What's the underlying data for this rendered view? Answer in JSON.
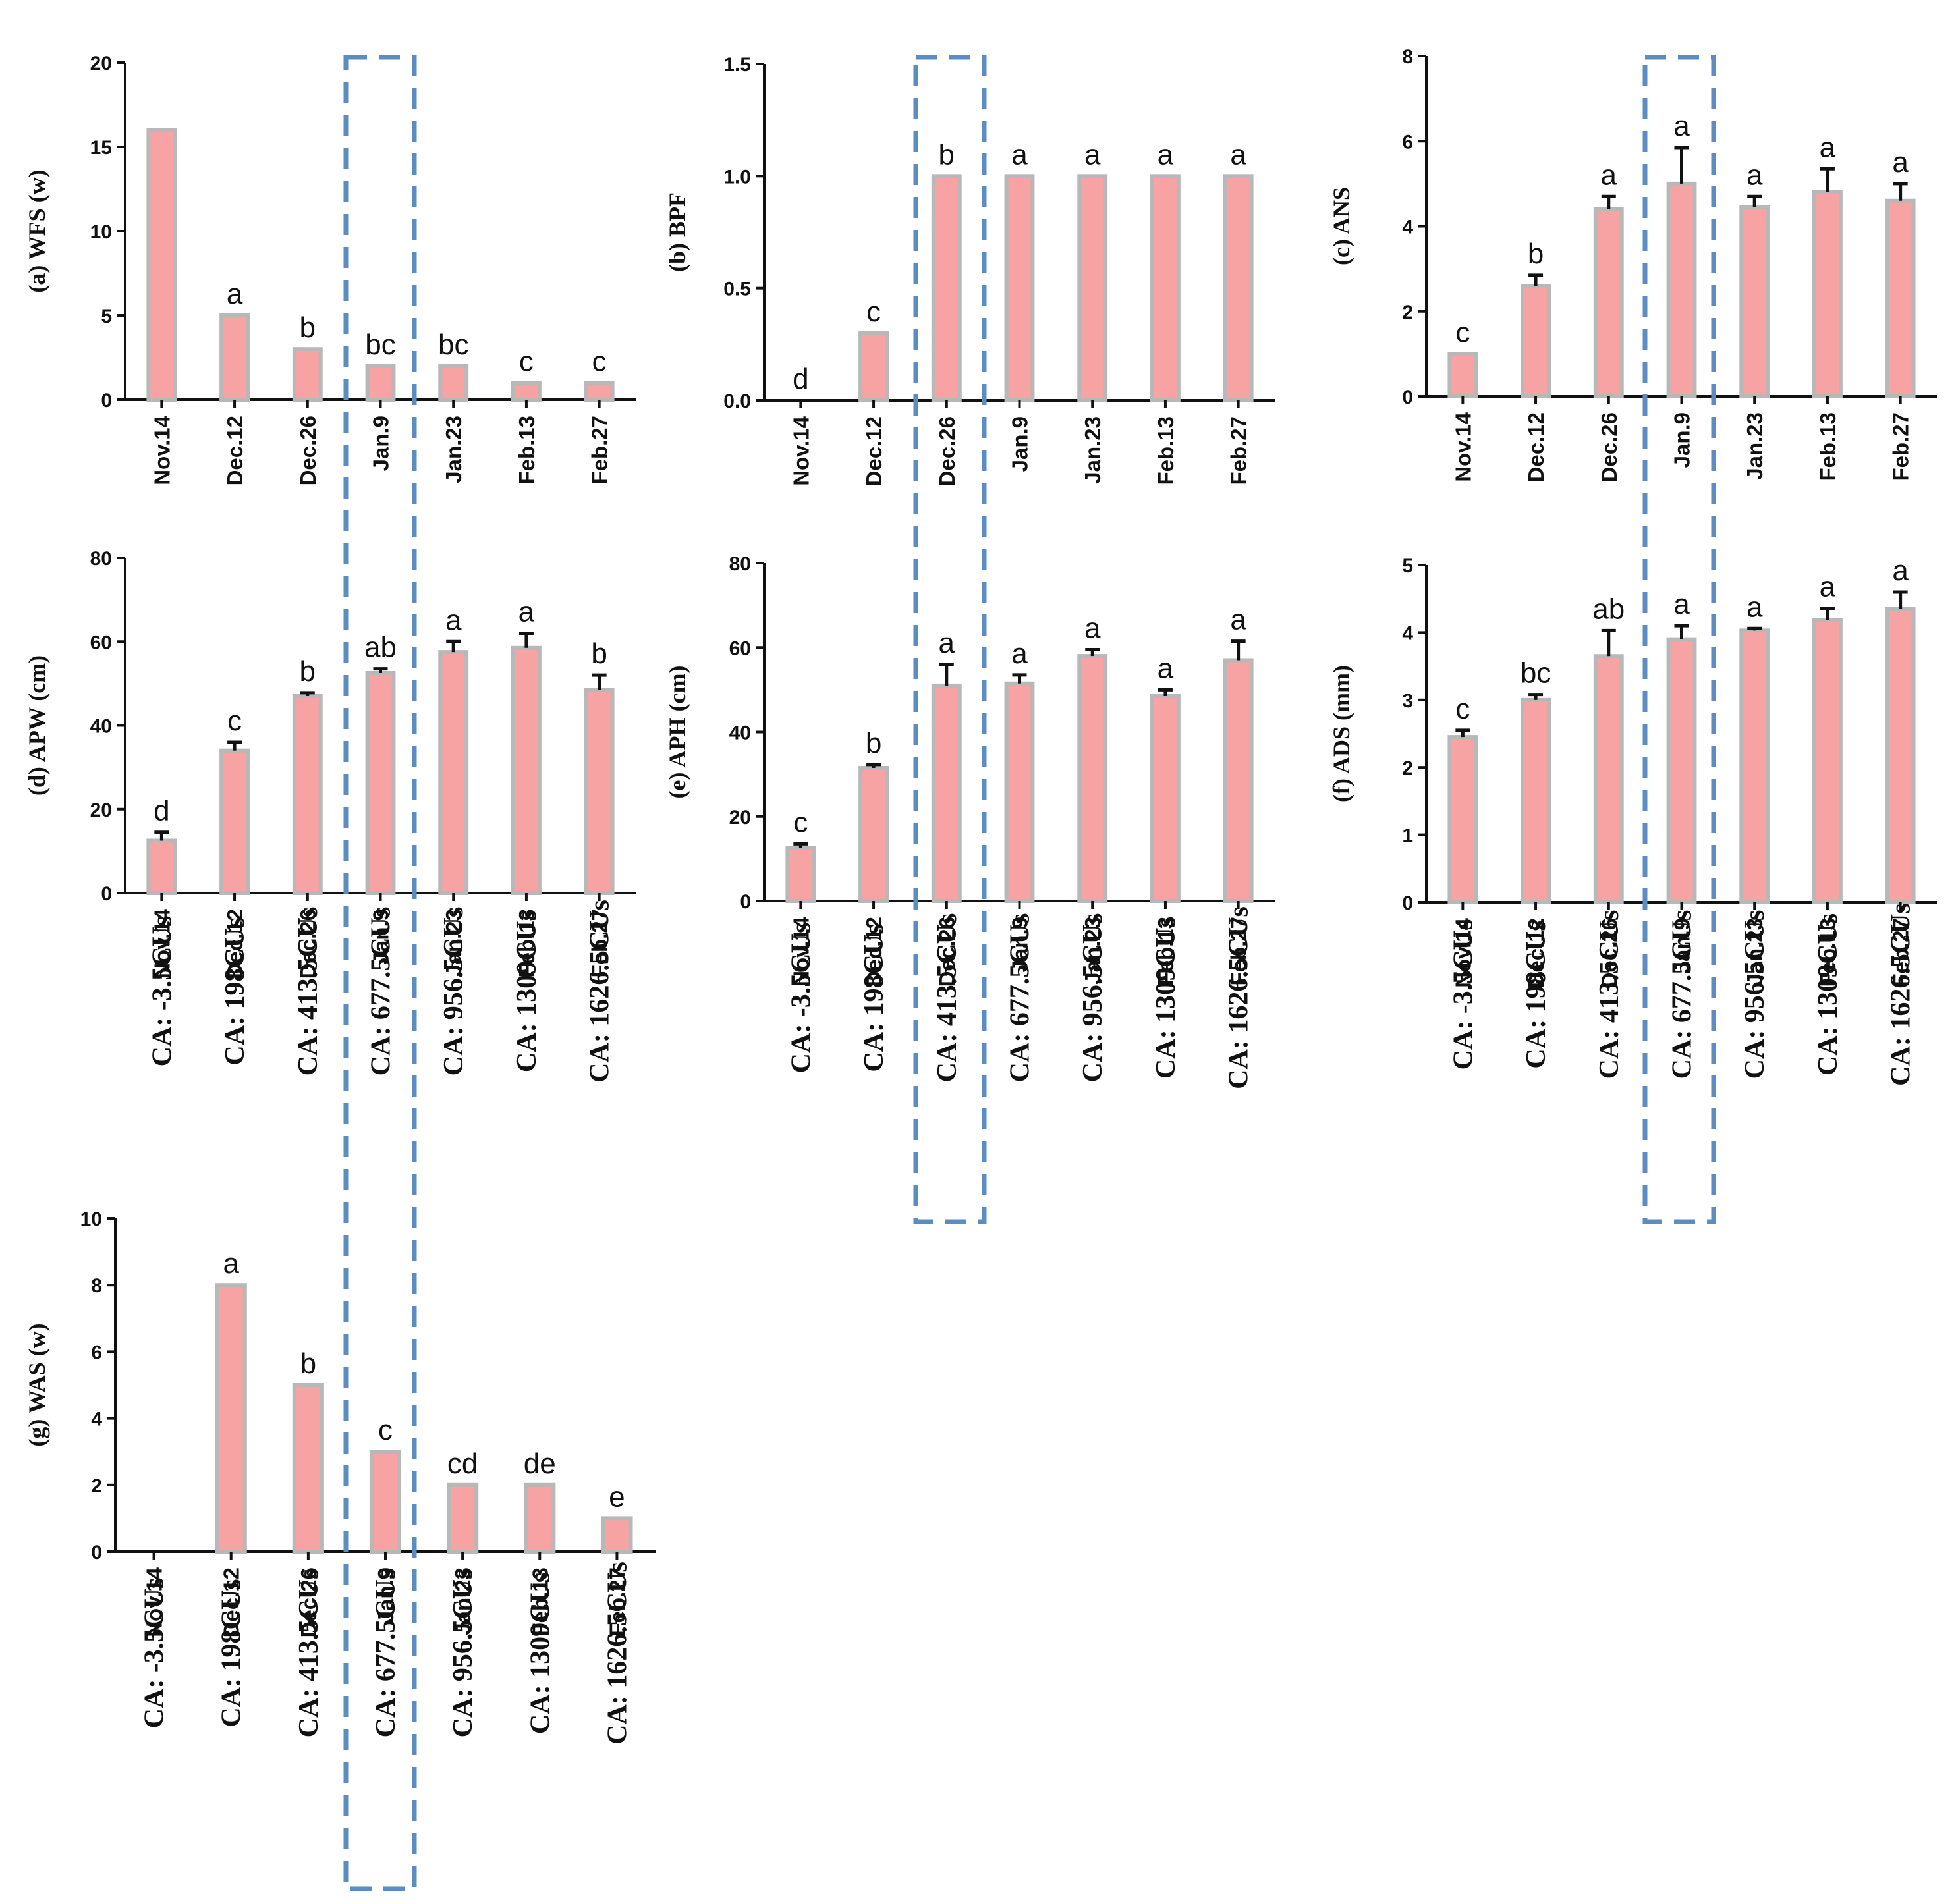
{
  "colors": {
    "bar_fill": "#F8A3A3",
    "bar_edge": "#B8B8B8",
    "axis": "#111111",
    "highlight": "#5B8CC2"
  },
  "chart_data": [
    {
      "id": "a",
      "type": "bar",
      "ylabel": "(a) WFS (w)",
      "ylim": [
        0,
        20
      ],
      "yticks": [
        "0",
        "5",
        "10",
        "15",
        "20"
      ],
      "categories": [
        "Nov.14",
        "Dec.12",
        "Dec.26",
        "Jan.9",
        "Jan.23",
        "Feb.13",
        "Feb.27"
      ],
      "values": [
        16,
        5,
        3,
        2,
        2,
        1,
        1
      ],
      "errors": [
        0,
        0,
        0,
        0,
        0,
        0,
        0
      ],
      "labels": [
        "",
        "a",
        "b",
        "bc",
        "bc",
        "c",
        "c"
      ]
    },
    {
      "id": "b",
      "type": "bar",
      "ylabel": "(b) BPF",
      "ylim": [
        0,
        1.5
      ],
      "yticks": [
        "0.0",
        "0.5",
        "1.0",
        "1.5"
      ],
      "categories": [
        "Nov.14",
        "Dec.12",
        "Dec.26",
        "Jan.9",
        "Jan.23",
        "Feb.13",
        "Feb.27"
      ],
      "values": [
        0,
        0.3,
        1,
        1,
        1,
        1,
        1
      ],
      "errors": [
        0,
        0,
        0,
        0,
        0,
        0,
        0
      ],
      "labels": [
        "d",
        "c",
        "b",
        "a",
        "a",
        "a",
        "a"
      ]
    },
    {
      "id": "c",
      "type": "bar",
      "ylabel": "(c) ANS",
      "ylim": [
        0,
        8
      ],
      "yticks": [
        "0",
        "2",
        "4",
        "6",
        "8"
      ],
      "categories": [
        "Nov.14",
        "Dec.12",
        "Dec.26",
        "Jan.9",
        "Jan.23",
        "Feb.13",
        "Feb.27"
      ],
      "values": [
        1,
        2.6,
        4.4,
        5,
        4.45,
        4.8,
        4.6
      ],
      "errors": [
        0,
        0.25,
        0.3,
        0.85,
        0.25,
        0.55,
        0.4
      ],
      "labels": [
        "c",
        "b",
        "a",
        "a",
        "a",
        "a",
        "a"
      ]
    },
    {
      "id": "d",
      "type": "bar",
      "ylabel": "(d) APW (cm)",
      "ylim": [
        0,
        80
      ],
      "yticks": [
        "0",
        "20",
        "40",
        "60",
        "80"
      ],
      "categories": [
        "Nov.14",
        "Dec.12",
        "Dec.26",
        "Jan.9",
        "Jan.23",
        "Feb.13",
        "Feb.27"
      ],
      "ca_labels": [
        "CA: -3.5CUs",
        "CA: 198CUs",
        "CA: 413.5CUs",
        "CA: 677.5CUs",
        "CA: 956.5CUs",
        "CA: 1309CUs",
        "CA: 1626.5CUs"
      ],
      "values": [
        12.5,
        34,
        47,
        52.5,
        57.5,
        58.5,
        48.5
      ],
      "errors": [
        2,
        2,
        0.8,
        1,
        2.5,
        3.5,
        3.5
      ],
      "labels": [
        "d",
        "c",
        "b",
        "ab",
        "a",
        "a",
        "b"
      ]
    },
    {
      "id": "e",
      "type": "bar",
      "ylabel": "(e) APH (cm)",
      "ylim": [
        0,
        80
      ],
      "yticks": [
        "0",
        "20",
        "40",
        "60",
        "80"
      ],
      "categories": [
        "Nov.14",
        "Dec.12",
        "Dec.26",
        "Jan.9",
        "Jan.23",
        "Feb.13",
        "Feb.27"
      ],
      "ca_labels": [
        "CA: -3.5CUs",
        "CA: 198CUs",
        "CA: 413.5CUs",
        "CA: 677.5CUs",
        "CA: 956.5CUs",
        "CA: 1309CUs",
        "CA: 1626.5CUs"
      ],
      "values": [
        12.5,
        31.5,
        51,
        51.5,
        58,
        48.5,
        57
      ],
      "errors": [
        1,
        0.8,
        5,
        2,
        1.5,
        1.5,
        4.5
      ],
      "labels": [
        "c",
        "b",
        "a",
        "a",
        "a",
        "a",
        "a"
      ]
    },
    {
      "id": "f",
      "type": "bar",
      "ylabel": "(f) ADS (mm)",
      "ylim": [
        0,
        5
      ],
      "yticks": [
        "0",
        "1",
        "2",
        "3",
        "4",
        "5"
      ],
      "categories": [
        "Nov.14",
        "Dec.12",
        "Dec.26",
        "Jan.9",
        "Jan.23",
        "Feb.13",
        "Feb.27"
      ],
      "ca_labels": [
        "CA: -3.5CUs",
        "CA: 198CUs",
        "CA: 413.5CUs",
        "CA: 677.5CUs",
        "CA: 956.5CUs",
        "CA: 1309CUs",
        "CA: 1626.5CUs"
      ],
      "values": [
        2.45,
        3,
        3.65,
        3.9,
        4.03,
        4.18,
        4.35
      ],
      "errors": [
        0.1,
        0.08,
        0.38,
        0.2,
        0.03,
        0.18,
        0.25
      ],
      "labels": [
        "c",
        "bc",
        "ab",
        "a",
        "a",
        "a",
        "a"
      ]
    },
    {
      "id": "g",
      "type": "bar",
      "ylabel": "(g) WAS (w)",
      "ylim": [
        0,
        10
      ],
      "yticks": [
        "0",
        "2",
        "4",
        "6",
        "8",
        "10"
      ],
      "categories": [
        "Nov.14",
        "Dec.12",
        "Dec.26",
        "Jan.9",
        "Jan.23",
        "Feb.13",
        "Feb.27"
      ],
      "ca_labels": [
        "CA: -3.5CUs",
        "CA: 198CUs",
        "CA: 413.5CUs",
        "CA: 677.5CUs",
        "CA: 956.5CUs",
        "CA: 1309CUs",
        "CA: 1626.5CUs"
      ],
      "values": [
        0,
        8,
        5,
        3,
        2,
        2,
        1
      ],
      "errors": [
        0,
        0,
        0,
        0,
        0,
        0,
        0
      ],
      "labels": [
        "",
        "a",
        "b",
        "c",
        "cd",
        "de",
        "e"
      ]
    }
  ]
}
